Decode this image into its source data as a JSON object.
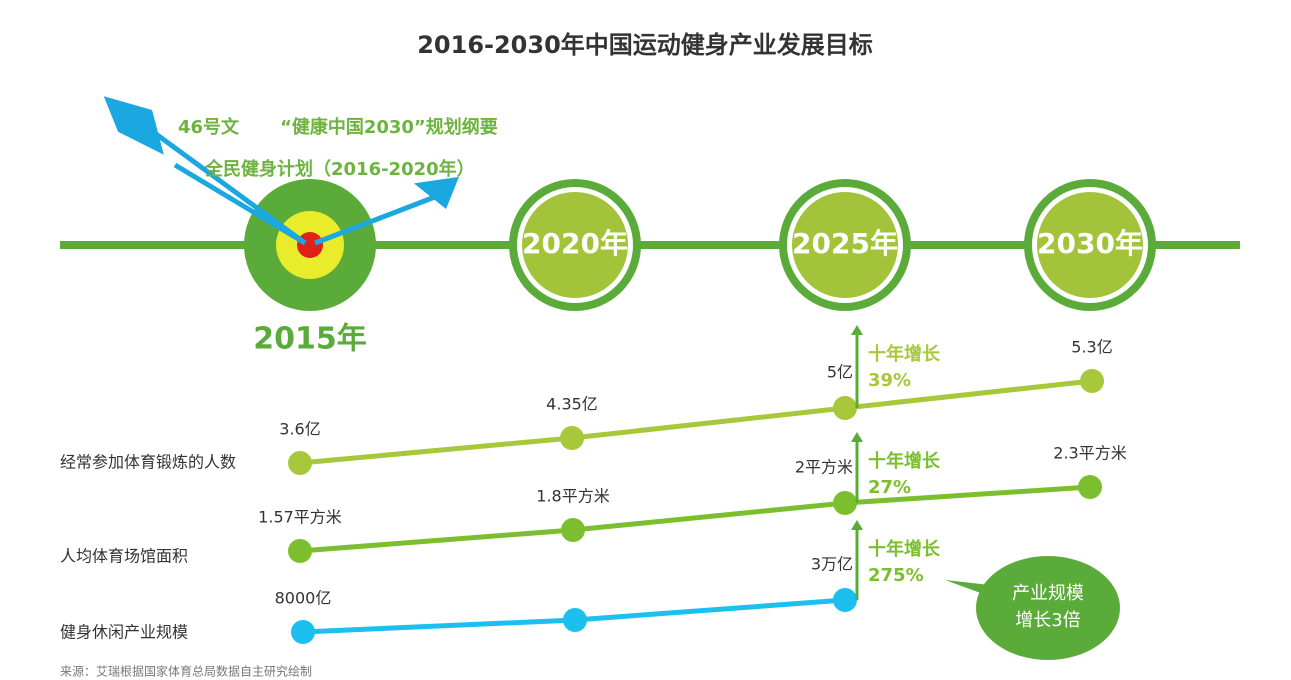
{
  "title": "2016-2030年中国运动健身产业发展目标",
  "policies": [
    "46号文",
    "“健康中国2030”规划纲要",
    "全民健身计划（2016-2020年）"
  ],
  "milestones": [
    "2015年",
    "2020年",
    "2025年",
    "2030年"
  ],
  "rows": [
    {
      "name": "经常参加体育锻炼的人数",
      "labels": [
        "3.6亿",
        "4.35亿",
        "5亿",
        "5.3亿"
      ],
      "growth_title": "十年增长",
      "growth": "39%"
    },
    {
      "name": "人均体育场馆面积",
      "labels": [
        "1.57平方米",
        "1.8平方米",
        "2平方米",
        "2.3平方米"
      ],
      "growth_title": "十年增长",
      "growth": "27%"
    },
    {
      "name": "健身休闲产业规模",
      "labels": [
        "8000亿",
        "3万亿"
      ],
      "growth_title": "十年增长",
      "growth": "275%"
    }
  ],
  "bubble": [
    "产业规模",
    "增长3倍"
  ],
  "source": "来源：艾瑞根据国家体育总局数据自主研究绘制"
}
